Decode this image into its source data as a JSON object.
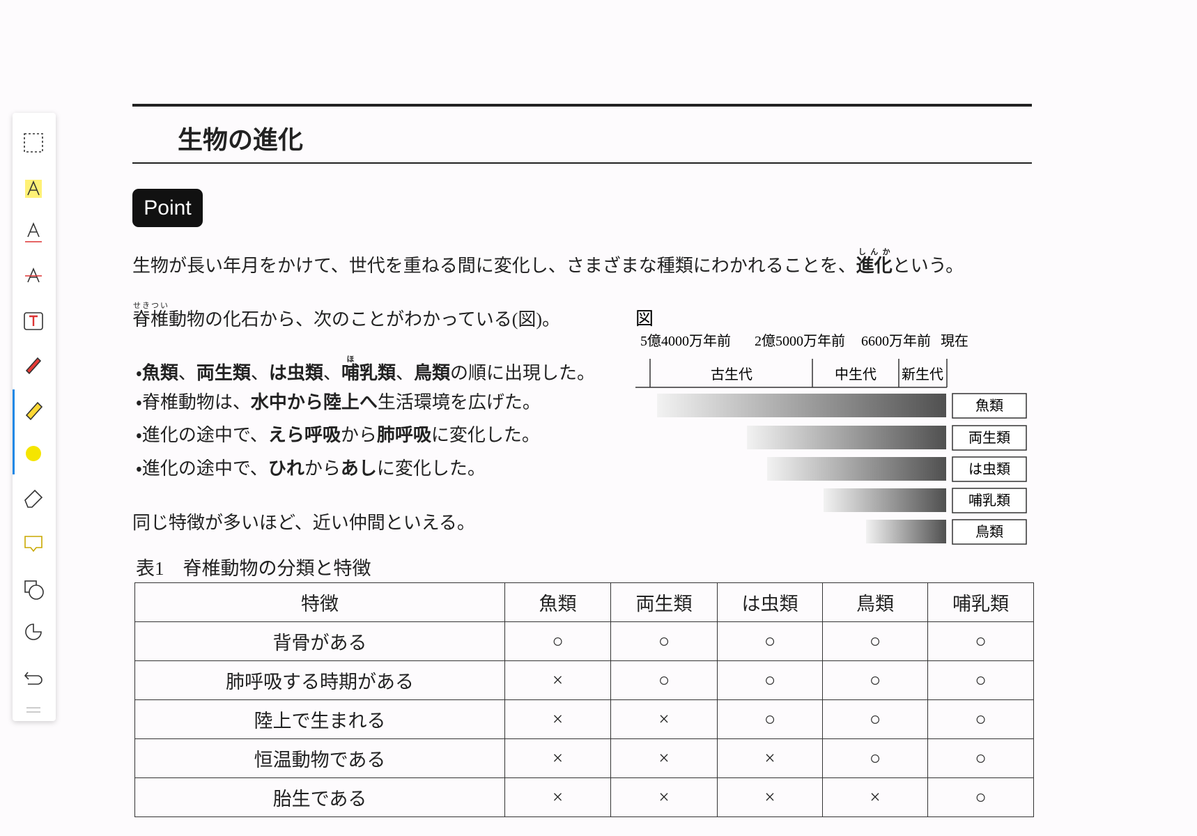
{
  "title": "生物の進化",
  "badge": "Point",
  "intro": {
    "before": "生物が長い年月をかけて、世代を重ねる間に変化し、さまざまな種類にわかれることを、",
    "term": "進化",
    "ruby": "しんか",
    "after": "という。"
  },
  "fossil_line": {
    "term": "脊椎",
    "ruby": "せきつい",
    "rest": "動物の化石から、次のことがわかっている(図)。"
  },
  "bullets": [
    {
      "marker": "・",
      "parts": [
        {
          "text": "魚類",
          "bold": true
        },
        {
          "text": "、"
        },
        {
          "text": "両生類",
          "bold": true
        },
        {
          "text": "、"
        },
        {
          "text": "は虫類",
          "bold": true
        },
        {
          "text": "、"
        },
        {
          "text": "哺",
          "bold": true,
          "ruby": "ほ"
        },
        {
          "text": "乳類",
          "bold": true
        },
        {
          "text": "、"
        },
        {
          "text": "鳥類",
          "bold": true
        },
        {
          "text": "の順に出現した。"
        }
      ]
    },
    {
      "marker": "・",
      "parts": [
        {
          "text": "脊椎動物は、"
        },
        {
          "text": "水中から陸上へ",
          "bold": true
        },
        {
          "text": "生活環境を広げた。"
        }
      ]
    },
    {
      "marker": "・",
      "parts": [
        {
          "text": "進化の途中で、"
        },
        {
          "text": "えら呼吸",
          "bold": true
        },
        {
          "text": "から"
        },
        {
          "text": "肺呼吸",
          "bold": true
        },
        {
          "text": "に変化した。"
        }
      ]
    },
    {
      "marker": "・",
      "parts": [
        {
          "text": "進化の途中で、"
        },
        {
          "text": "ひれ",
          "bold": true
        },
        {
          "text": "から"
        },
        {
          "text": "あし",
          "bold": true
        },
        {
          "text": "に変化した。"
        }
      ]
    }
  ],
  "conclusion": "同じ特徴が多いほど、近い仲間といえる。",
  "figure": {
    "title": "図",
    "times": [
      "5億4000万年前",
      "2億5000万年前",
      "6600万年前",
      "現在"
    ],
    "eras": [
      "古生代",
      "中生代",
      "新生代"
    ],
    "groups": [
      "魚類",
      "両生類",
      "は虫類",
      "哺乳類",
      "鳥類"
    ]
  },
  "table": {
    "caption": "表1　脊椎動物の分類と特徴",
    "header": [
      "特徴",
      "魚類",
      "両生類",
      "は虫類",
      "鳥類",
      "哺乳類"
    ],
    "rows": [
      [
        "背骨がある",
        "○",
        "○",
        "○",
        "○",
        "○"
      ],
      [
        "肺呼吸する時期がある",
        "×",
        "○",
        "○",
        "○",
        "○"
      ],
      [
        "陸上で生まれる",
        "×",
        "×",
        "○",
        "○",
        "○"
      ],
      [
        "恒温動物である",
        "×",
        "×",
        "×",
        "○",
        "○"
      ],
      [
        "胎生である",
        "×",
        "×",
        "×",
        "×",
        "○"
      ]
    ]
  }
}
